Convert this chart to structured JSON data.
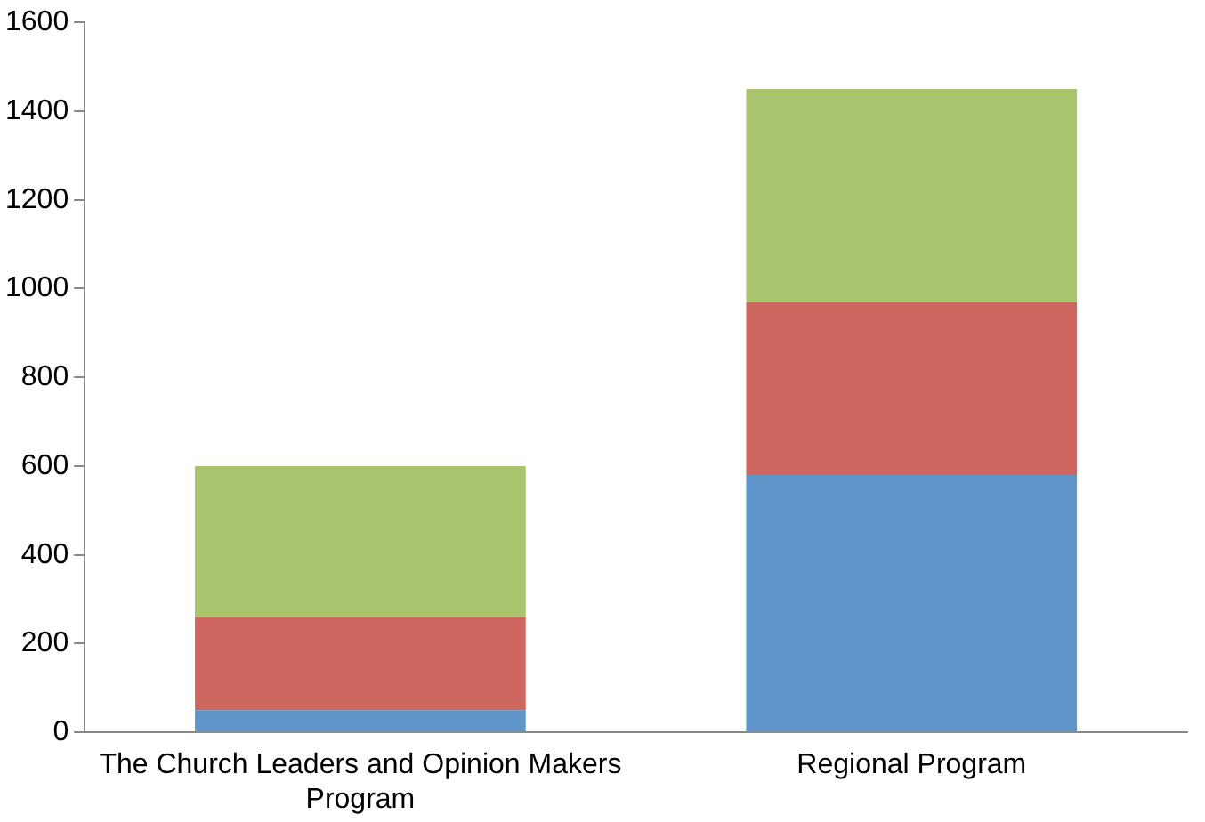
{
  "chart_data": {
    "type": "bar",
    "stacked": true,
    "categories": [
      "The Church Leaders and Opinion Makers Program",
      "Regional Program"
    ],
    "series": [
      {
        "color": "#5f95c9",
        "values": [
          50,
          580
        ]
      },
      {
        "color": "#cd665e",
        "values": [
          210,
          390
        ]
      },
      {
        "color": "#aac46d",
        "values": [
          340,
          480
        ]
      }
    ],
    "ylim": [
      0,
      1600
    ],
    "yticks": [
      0,
      200,
      400,
      600,
      800,
      1000,
      1200,
      1400,
      1600
    ],
    "grid": false,
    "legend": false
  }
}
